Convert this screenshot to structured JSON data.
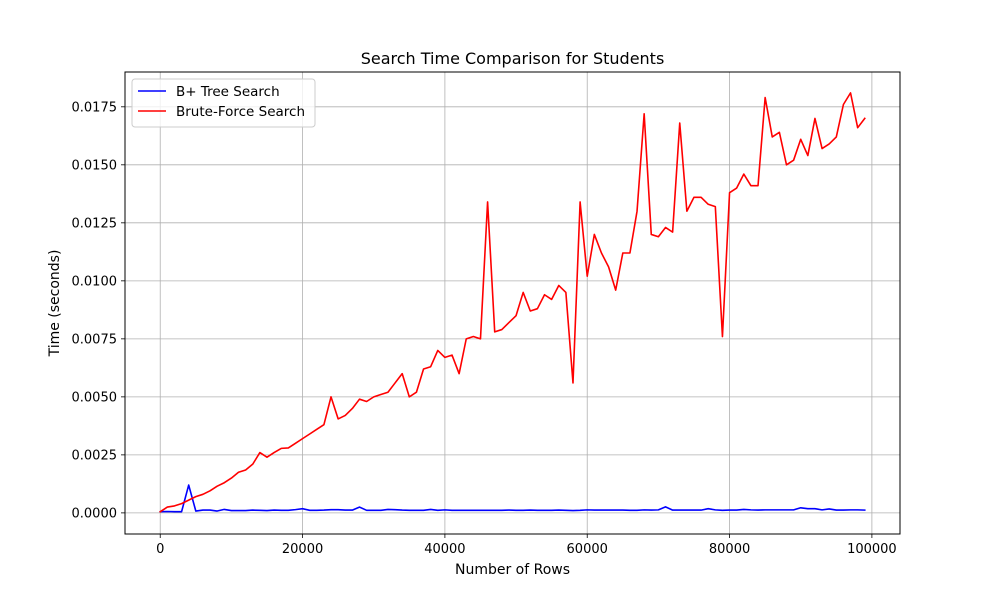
{
  "chart_data": {
    "type": "line",
    "title": "Search Time Comparison for Students",
    "xlabel": "Number of Rows",
    "ylabel": "Time (seconds)",
    "xlim": [
      -4950,
      103950
    ],
    "ylim": [
      -0.00091,
      0.019
    ],
    "xticks": [
      0,
      20000,
      40000,
      60000,
      80000,
      100000
    ],
    "xtick_labels": [
      "0",
      "20000",
      "40000",
      "60000",
      "80000",
      "100000"
    ],
    "yticks": [
      0.0,
      0.0025,
      0.005,
      0.0075,
      0.01,
      0.0125,
      0.015,
      0.0175
    ],
    "ytick_labels": [
      "0.0000",
      "0.0025",
      "0.0050",
      "0.0075",
      "0.0100",
      "0.0125",
      "0.0150",
      "0.0175"
    ],
    "grid": true,
    "legend_position": "top-left",
    "x": [
      0,
      1000,
      2000,
      3000,
      4000,
      5000,
      6000,
      7000,
      8000,
      9000,
      10000,
      11000,
      12000,
      13000,
      14000,
      15000,
      16000,
      17000,
      18000,
      19000,
      20000,
      21000,
      22000,
      23000,
      24000,
      25000,
      26000,
      27000,
      28000,
      29000,
      30000,
      31000,
      32000,
      33000,
      34000,
      35000,
      36000,
      37000,
      38000,
      39000,
      40000,
      41000,
      42000,
      43000,
      44000,
      45000,
      46000,
      47000,
      48000,
      49000,
      50000,
      51000,
      52000,
      53000,
      54000,
      55000,
      56000,
      57000,
      58000,
      59000,
      60000,
      61000,
      62000,
      63000,
      64000,
      65000,
      66000,
      67000,
      68000,
      69000,
      70000,
      71000,
      72000,
      73000,
      74000,
      75000,
      76000,
      77000,
      78000,
      79000,
      80000,
      81000,
      82000,
      83000,
      84000,
      85000,
      86000,
      87000,
      88000,
      89000,
      90000,
      91000,
      92000,
      93000,
      94000,
      95000,
      96000,
      97000,
      98000,
      99000
    ],
    "series": [
      {
        "name": "B+ Tree Search",
        "color": "#0000ff",
        "values": [
          5e-05,
          6e-05,
          5e-05,
          5e-05,
          0.0012,
          8e-05,
          0.00012,
          0.00012,
          8e-05,
          0.00015,
          0.0001,
          0.0001,
          0.0001,
          0.00012,
          0.00011,
          0.0001,
          0.00012,
          0.00011,
          0.00011,
          0.00014,
          0.00018,
          0.00011,
          0.00011,
          0.00012,
          0.00014,
          0.00014,
          0.00012,
          0.00012,
          0.00025,
          0.00011,
          0.00011,
          0.00011,
          0.00015,
          0.00014,
          0.00012,
          0.00011,
          0.00011,
          0.00011,
          0.00015,
          0.00011,
          0.00013,
          0.00011,
          0.00011,
          0.00011,
          0.00011,
          0.00011,
          0.00011,
          0.00011,
          0.00011,
          0.00012,
          0.00011,
          0.00011,
          0.00012,
          0.00011,
          0.00011,
          0.00011,
          0.00012,
          0.00011,
          0.0001,
          0.00011,
          0.00013,
          0.00012,
          0.00012,
          0.00012,
          0.00012,
          0.00012,
          0.00011,
          0.00011,
          0.00013,
          0.00012,
          0.00013,
          0.00026,
          0.00012,
          0.00012,
          0.00012,
          0.00012,
          0.00012,
          0.00018,
          0.00013,
          0.00011,
          0.00012,
          0.00012,
          0.00015,
          0.00013,
          0.00012,
          0.00013,
          0.00013,
          0.00013,
          0.00013,
          0.00013,
          0.00022,
          0.00018,
          0.00018,
          0.00013,
          0.00017,
          0.00012,
          0.00012,
          0.00013,
          0.00013,
          0.00012
        ]
      },
      {
        "name": "Brute-Force Search",
        "color": "#ff0000",
        "values": [
          5e-05,
          0.00025,
          0.0003,
          0.0004,
          0.00055,
          0.0007,
          0.0008,
          0.00095,
          0.00115,
          0.0013,
          0.0015,
          0.00175,
          0.00185,
          0.0021,
          0.0026,
          0.0024,
          0.0026,
          0.00278,
          0.0028,
          0.003,
          0.0032,
          0.0034,
          0.0036,
          0.0038,
          0.005,
          0.00405,
          0.0042,
          0.0045,
          0.0049,
          0.0048,
          0.005,
          0.0051,
          0.0052,
          0.0056,
          0.006,
          0.005,
          0.0052,
          0.0062,
          0.0063,
          0.007,
          0.0067,
          0.0068,
          0.006,
          0.0075,
          0.0076,
          0.0075,
          0.0134,
          0.0078,
          0.0079,
          0.0082,
          0.0085,
          0.0095,
          0.0087,
          0.0088,
          0.0094,
          0.0092,
          0.0098,
          0.0095,
          0.0056,
          0.0134,
          0.0102,
          0.012,
          0.0112,
          0.0106,
          0.0096,
          0.0112,
          0.0112,
          0.013,
          0.0172,
          0.012,
          0.0119,
          0.0123,
          0.0121,
          0.0168,
          0.013,
          0.0136,
          0.0136,
          0.0133,
          0.0132,
          0.0076,
          0.0138,
          0.014,
          0.0146,
          0.0141,
          0.0141,
          0.0179,
          0.0162,
          0.0164,
          0.015,
          0.0152,
          0.0161,
          0.0154,
          0.017,
          0.0157,
          0.0159,
          0.0162,
          0.0176,
          0.0181,
          0.0166,
          0.017
        ]
      }
    ]
  }
}
